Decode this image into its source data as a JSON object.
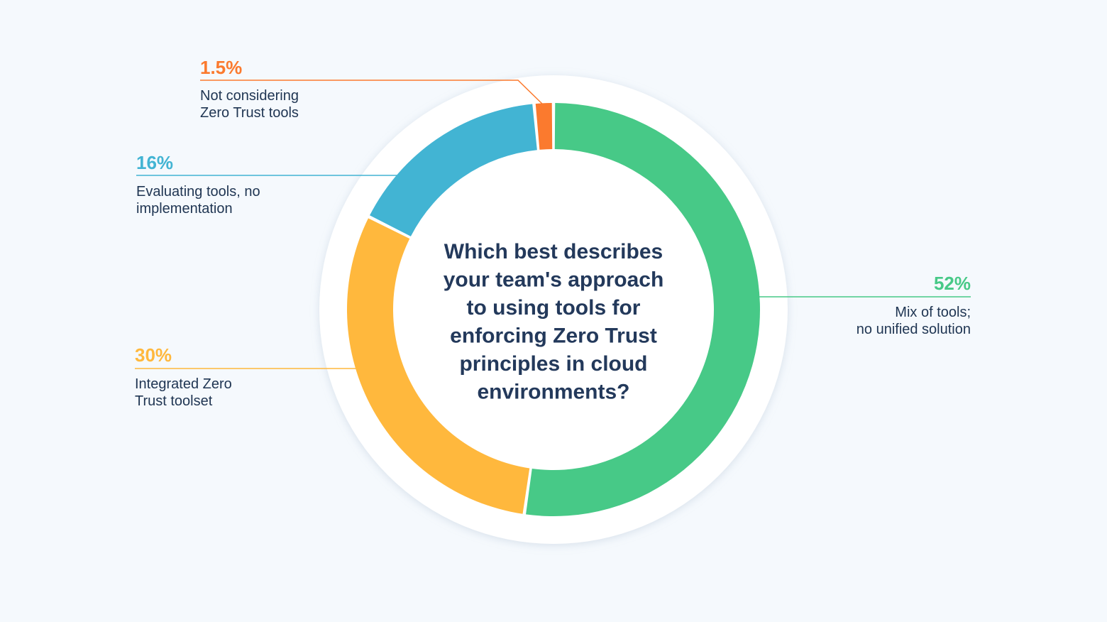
{
  "chart_data": {
    "type": "pie",
    "title": "Which best describes your team's approach to using tools for enforcing Zero Trust principles in cloud environments?",
    "title_lines": [
      "Which best describes",
      "your team's approach",
      "to using tools for",
      "enforcing Zero Trust",
      "principles in cloud",
      "environments?"
    ],
    "slices": [
      {
        "value": 52,
        "value_label": "52%",
        "label_lines": [
          "Mix of tools;",
          "no unified solution"
        ],
        "color": "#47c987"
      },
      {
        "value": 30,
        "value_label": "30%",
        "label_lines": [
          "Integrated Zero",
          "Trust toolset"
        ],
        "color": "#ffb83d"
      },
      {
        "value": 16,
        "value_label": "16%",
        "label_lines": [
          "Evaluating tools, no",
          "implementation"
        ],
        "color": "#42b4d3"
      },
      {
        "value": 1.5,
        "value_label": "1.5%",
        "label_lines": [
          "Not considering",
          "Zero Trust tools"
        ],
        "color": "#fb7a2e"
      }
    ]
  }
}
